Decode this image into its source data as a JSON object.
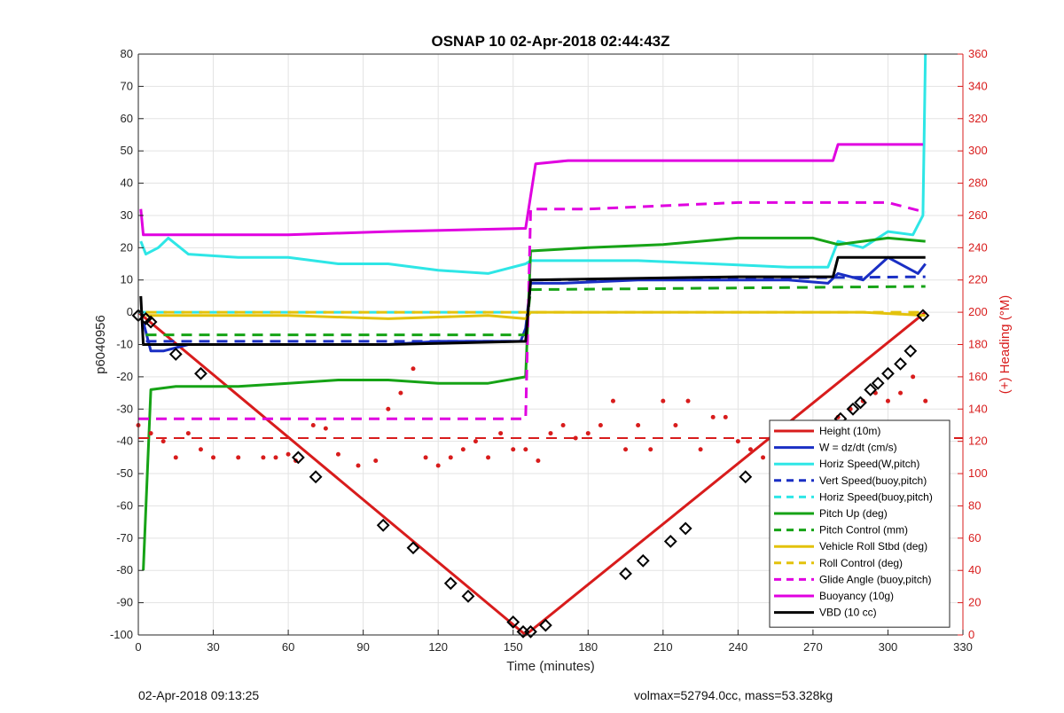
{
  "chart_data": {
    "type": "line",
    "title": "OSNAP 10 02-Apr-2018 02:44:43Z",
    "xlabel": "Time (minutes)",
    "ylabel_left": "p6040956",
    "ylabel_right": "(+) Heading (°M)",
    "xlim": [
      0,
      330
    ],
    "ylim_left": [
      -100,
      80
    ],
    "ylim_right": [
      0,
      360
    ],
    "xticks": [
      0,
      30,
      60,
      90,
      120,
      150,
      180,
      210,
      240,
      270,
      300,
      330
    ],
    "yticks_left": [
      -100,
      -90,
      -80,
      -70,
      -60,
      -50,
      -40,
      -30,
      -20,
      -10,
      0,
      10,
      20,
      30,
      40,
      50,
      60,
      70,
      80
    ],
    "yticks_right": [
      0,
      20,
      40,
      60,
      80,
      100,
      120,
      140,
      160,
      180,
      200,
      220,
      240,
      260,
      280,
      300,
      320,
      340,
      360
    ],
    "grid": true,
    "legend_position": "bottom-right",
    "series": [
      {
        "name": "Height (10m)",
        "color": "#d81c1c",
        "style": "solid",
        "x": [
          0,
          155,
          315
        ],
        "y": [
          0,
          -100,
          0
        ]
      },
      {
        "name": "W = dz/dt (cm/s)",
        "color": "#1a2fc4",
        "style": "solid",
        "x": [
          2,
          5,
          10,
          20,
          40,
          60,
          80,
          100,
          120,
          140,
          153,
          155,
          157,
          170,
          200,
          230,
          260,
          276,
          280,
          290,
          300,
          312,
          315
        ],
        "y": [
          -3,
          -12,
          -12,
          -10,
          -10,
          -10,
          -10,
          -10,
          -9,
          -9,
          -9,
          -5,
          9,
          9,
          10,
          10,
          10,
          9,
          12,
          10,
          17,
          12,
          15
        ]
      },
      {
        "name": "Horiz Speed(W,pitch)",
        "color": "#2ee6e6",
        "style": "solid",
        "x": [
          1,
          3,
          8,
          12,
          20,
          40,
          60,
          80,
          100,
          120,
          140,
          155,
          157,
          170,
          200,
          230,
          260,
          276,
          280,
          290,
          300,
          310,
          314,
          315
        ],
        "y": [
          22,
          18,
          20,
          23,
          18,
          17,
          17,
          15,
          15,
          13,
          12,
          15,
          16,
          16,
          16,
          15,
          14,
          14,
          22,
          20,
          25,
          24,
          30,
          80
        ]
      },
      {
        "name": "Vert Speed(buoy,pitch)",
        "color": "#1a2fc4",
        "style": "dash",
        "x": [
          3,
          155,
          157,
          315
        ],
        "y": [
          -9,
          -9,
          10,
          11
        ]
      },
      {
        "name": "Horiz Speed(buoy,pitch)",
        "color": "#2ee6e6",
        "style": "dash",
        "x": [
          0,
          160
        ],
        "y": [
          0,
          0
        ]
      },
      {
        "name": "Pitch Up (deg)",
        "color": "#16a316",
        "style": "solid",
        "x": [
          2,
          5,
          15,
          40,
          60,
          80,
          100,
          120,
          140,
          155,
          157,
          180,
          210,
          240,
          270,
          280,
          300,
          315
        ],
        "y": [
          -80,
          -24,
          -23,
          -23,
          -22,
          -21,
          -21,
          -22,
          -22,
          -20,
          19,
          20,
          21,
          23,
          23,
          21,
          23,
          22
        ]
      },
      {
        "name": "Pitch Control (mm)",
        "color": "#16a316",
        "style": "dash",
        "x": [
          3,
          155,
          157,
          315
        ],
        "y": [
          -7,
          -7,
          7,
          8
        ]
      },
      {
        "name": "Vehicle Roll Stbd (deg)",
        "color": "#e3c20c",
        "style": "solid",
        "x": [
          3,
          20,
          60,
          100,
          140,
          155,
          157,
          180,
          220,
          260,
          290,
          315
        ],
        "y": [
          -1,
          -1,
          -1,
          -2,
          -1,
          -2,
          0,
          0,
          0,
          0,
          0,
          -1
        ]
      },
      {
        "name": "Roll Control (deg)",
        "color": "#e3c20c",
        "style": "dash",
        "x": [
          3,
          155,
          315
        ],
        "y": [
          0,
          0,
          0
        ]
      },
      {
        "name": "Glide Angle (buoy,pitch)",
        "color": "#e000e0",
        "style": "dash",
        "x": [
          0,
          155,
          157,
          180,
          210,
          240,
          270,
          300,
          315
        ],
        "y": [
          -33,
          -33,
          32,
          32,
          33,
          34,
          34,
          34,
          31
        ]
      },
      {
        "name": "Buoyancy (10g)",
        "color": "#e000e0",
        "style": "solid",
        "x": [
          1,
          2,
          60,
          100,
          155,
          159,
          172,
          200,
          240,
          278,
          280,
          298,
          300,
          314
        ],
        "y": [
          32,
          24,
          24,
          25,
          26,
          46,
          47,
          47,
          47,
          47,
          52,
          52,
          52,
          52
        ]
      },
      {
        "name": "VBD (10 cc)",
        "color": "#000000",
        "style": "solid",
        "x": [
          1,
          2,
          60,
          100,
          155,
          157,
          240,
          278,
          280,
          315
        ],
        "y": [
          5,
          -10,
          -10,
          -10,
          -9,
          10,
          11,
          11,
          17,
          17
        ]
      }
    ],
    "heading_series": {
      "name": "Heading",
      "color": "#d81c1c",
      "style": "dots",
      "axis": "right",
      "x": [
        0,
        5,
        10,
        15,
        20,
        25,
        30,
        40,
        50,
        55,
        60,
        63,
        70,
        75,
        80,
        88,
        95,
        100,
        105,
        110,
        115,
        120,
        125,
        130,
        135,
        140,
        145,
        150,
        155,
        160,
        165,
        170,
        175,
        180,
        185,
        190,
        195,
        200,
        205,
        210,
        215,
        220,
        225,
        230,
        235,
        240,
        245,
        250,
        255,
        260,
        265,
        270,
        275,
        280,
        285,
        290,
        295,
        300,
        305,
        310,
        315
      ],
      "y": [
        130,
        125,
        120,
        110,
        125,
        115,
        110,
        110,
        110,
        110,
        112,
        108,
        130,
        128,
        112,
        105,
        108,
        140,
        150,
        165,
        110,
        105,
        110,
        115,
        120,
        110,
        125,
        115,
        115,
        108,
        125,
        130,
        122,
        125,
        130,
        145,
        115,
        130,
        115,
        145,
        130,
        145,
        115,
        135,
        135,
        120,
        115,
        110,
        120,
        115,
        130,
        125,
        120,
        135,
        140,
        145,
        150,
        145,
        150,
        160,
        145
      ]
    },
    "heading_reference": {
      "color": "#d81c1c",
      "style": "dash",
      "axis": "right",
      "value": 122
    },
    "markers": {
      "color": "#000000",
      "style": "diamond",
      "x": [
        0,
        3,
        5,
        15,
        25,
        64,
        71,
        98,
        110,
        125,
        132,
        150,
        154,
        157,
        163,
        195,
        202,
        213,
        219,
        243,
        265,
        281,
        286,
        289,
        293,
        296,
        300,
        305,
        309,
        314
      ],
      "y": [
        -1,
        -2,
        -3,
        -13,
        -19,
        -45,
        -51,
        -66,
        -73,
        -84,
        -88,
        -96,
        -99,
        -99,
        -97,
        -81,
        -77,
        -71,
        -67,
        -51,
        -37,
        -33,
        -30,
        -28,
        -24,
        -22,
        -19,
        -16,
        -12,
        -1
      ]
    }
  },
  "footer": {
    "left": "02-Apr-2018 09:13:25",
    "right": "volmax=52794.0cc, mass=53.328kg"
  }
}
